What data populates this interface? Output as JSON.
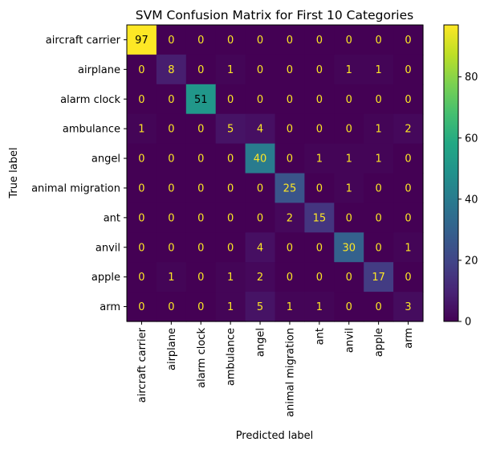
{
  "chart_data": {
    "type": "heatmap",
    "title": "SVM Confusion Matrix for First 10 Categories",
    "xlabel": "Predicted label",
    "ylabel": "True label",
    "labels": [
      "aircraft carrier",
      "airplane",
      "alarm clock",
      "ambulance",
      "angel",
      "animal migration",
      "ant",
      "anvil",
      "apple",
      "arm"
    ],
    "matrix": [
      [
        97,
        0,
        0,
        0,
        0,
        0,
        0,
        0,
        0,
        0
      ],
      [
        0,
        8,
        0,
        1,
        0,
        0,
        0,
        1,
        1,
        0
      ],
      [
        0,
        0,
        51,
        0,
        0,
        0,
        0,
        0,
        0,
        0
      ],
      [
        1,
        0,
        0,
        5,
        4,
        0,
        0,
        0,
        1,
        2
      ],
      [
        0,
        0,
        0,
        0,
        40,
        0,
        1,
        1,
        1,
        0
      ],
      [
        0,
        0,
        0,
        0,
        0,
        25,
        0,
        1,
        0,
        0
      ],
      [
        0,
        0,
        0,
        0,
        0,
        2,
        15,
        0,
        0,
        0
      ],
      [
        0,
        0,
        0,
        0,
        4,
        0,
        0,
        30,
        0,
        1
      ],
      [
        0,
        1,
        0,
        1,
        2,
        0,
        0,
        0,
        17,
        0
      ],
      [
        0,
        0,
        0,
        1,
        5,
        1,
        1,
        0,
        0,
        3
      ]
    ],
    "colormap": "viridis",
    "vmin": 0,
    "vmax": 97,
    "colorbar_ticks": [
      0,
      20,
      40,
      60,
      80
    ],
    "text_color_low": "#fde725",
    "text_color_high": "#000000"
  }
}
